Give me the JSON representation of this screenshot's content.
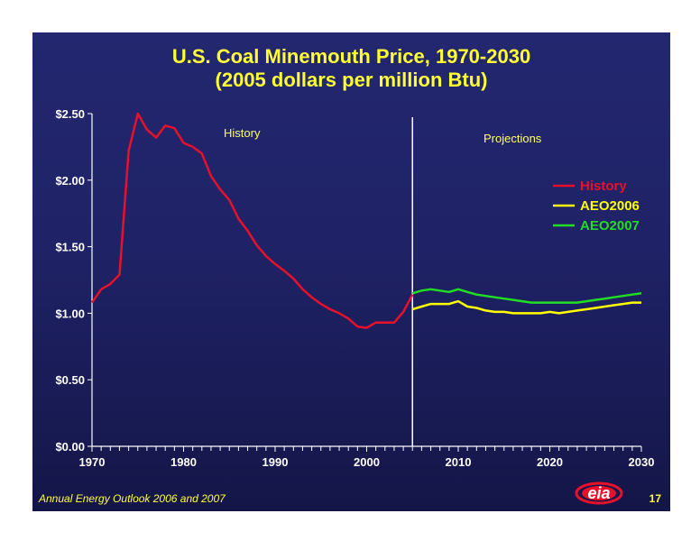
{
  "title_line1": "U.S. Coal Minemouth Price, 1970-2030",
  "title_line2": "(2005 dollars per million Btu)",
  "footer": "Annual Energy Outlook 2006 and 2007",
  "page_number": "17",
  "logo_text": "eia",
  "colors": {
    "background": "#1f2266",
    "title": "#ffff33",
    "history": "#e8102a",
    "aeo2006": "#ffff00",
    "aeo2007": "#22dd22",
    "divider": "#ffffff"
  },
  "chart_data": {
    "type": "line",
    "title": "U.S. Coal Minemouth Price, 1970-2030 (2005 dollars per million Btu)",
    "xlabel": "",
    "ylabel": "",
    "xlim": [
      1970,
      2030
    ],
    "ylim": [
      0,
      2.5
    ],
    "x_ticks": [
      1970,
      1980,
      1990,
      2000,
      2010,
      2020,
      2030
    ],
    "y_ticks": [
      0,
      0.5,
      1.0,
      1.5,
      2.0,
      2.5
    ],
    "y_tick_labels": [
      "$0.00",
      "$0.50",
      "$1.00",
      "$1.50",
      "$2.00",
      "$2.50"
    ],
    "divider_x": 2005,
    "annotations": [
      "History",
      "Projections"
    ],
    "legend_position": "right",
    "grid": false,
    "series": [
      {
        "name": "History",
        "x": [
          1970,
          1971,
          1972,
          1973,
          1974,
          1975,
          1976,
          1977,
          1978,
          1979,
          1980,
          1981,
          1982,
          1983,
          1984,
          1985,
          1986,
          1987,
          1988,
          1989,
          1990,
          1991,
          1992,
          1993,
          1994,
          1995,
          1996,
          1997,
          1998,
          1999,
          2000,
          2001,
          2002,
          2003,
          2004,
          2005
        ],
        "values": [
          1.08,
          1.18,
          1.22,
          1.29,
          2.22,
          2.5,
          2.38,
          2.32,
          2.41,
          2.39,
          2.28,
          2.25,
          2.2,
          2.03,
          1.93,
          1.85,
          1.71,
          1.62,
          1.51,
          1.43,
          1.37,
          1.32,
          1.26,
          1.18,
          1.12,
          1.07,
          1.03,
          1.0,
          0.96,
          0.9,
          0.89,
          0.93,
          0.93,
          0.93,
          1.01,
          1.14
        ]
      },
      {
        "name": "AEO2006",
        "x": [
          2005,
          2006,
          2007,
          2008,
          2009,
          2010,
          2011,
          2012,
          2013,
          2014,
          2015,
          2016,
          2017,
          2018,
          2019,
          2020,
          2021,
          2022,
          2023,
          2024,
          2025,
          2026,
          2027,
          2028,
          2029,
          2030
        ],
        "values": [
          1.03,
          1.05,
          1.07,
          1.07,
          1.07,
          1.09,
          1.05,
          1.04,
          1.02,
          1.01,
          1.01,
          1.0,
          1.0,
          1.0,
          1.0,
          1.01,
          1.0,
          1.01,
          1.02,
          1.03,
          1.04,
          1.05,
          1.06,
          1.07,
          1.08,
          1.08
        ]
      },
      {
        "name": "AEO2007",
        "x": [
          2005,
          2006,
          2007,
          2008,
          2009,
          2010,
          2011,
          2012,
          2013,
          2014,
          2015,
          2016,
          2017,
          2018,
          2019,
          2020,
          2021,
          2022,
          2023,
          2024,
          2025,
          2026,
          2027,
          2028,
          2029,
          2030
        ],
        "values": [
          1.15,
          1.17,
          1.18,
          1.17,
          1.16,
          1.18,
          1.16,
          1.14,
          1.13,
          1.12,
          1.11,
          1.1,
          1.09,
          1.08,
          1.08,
          1.08,
          1.08,
          1.08,
          1.08,
          1.09,
          1.1,
          1.11,
          1.12,
          1.13,
          1.14,
          1.15
        ]
      }
    ]
  }
}
